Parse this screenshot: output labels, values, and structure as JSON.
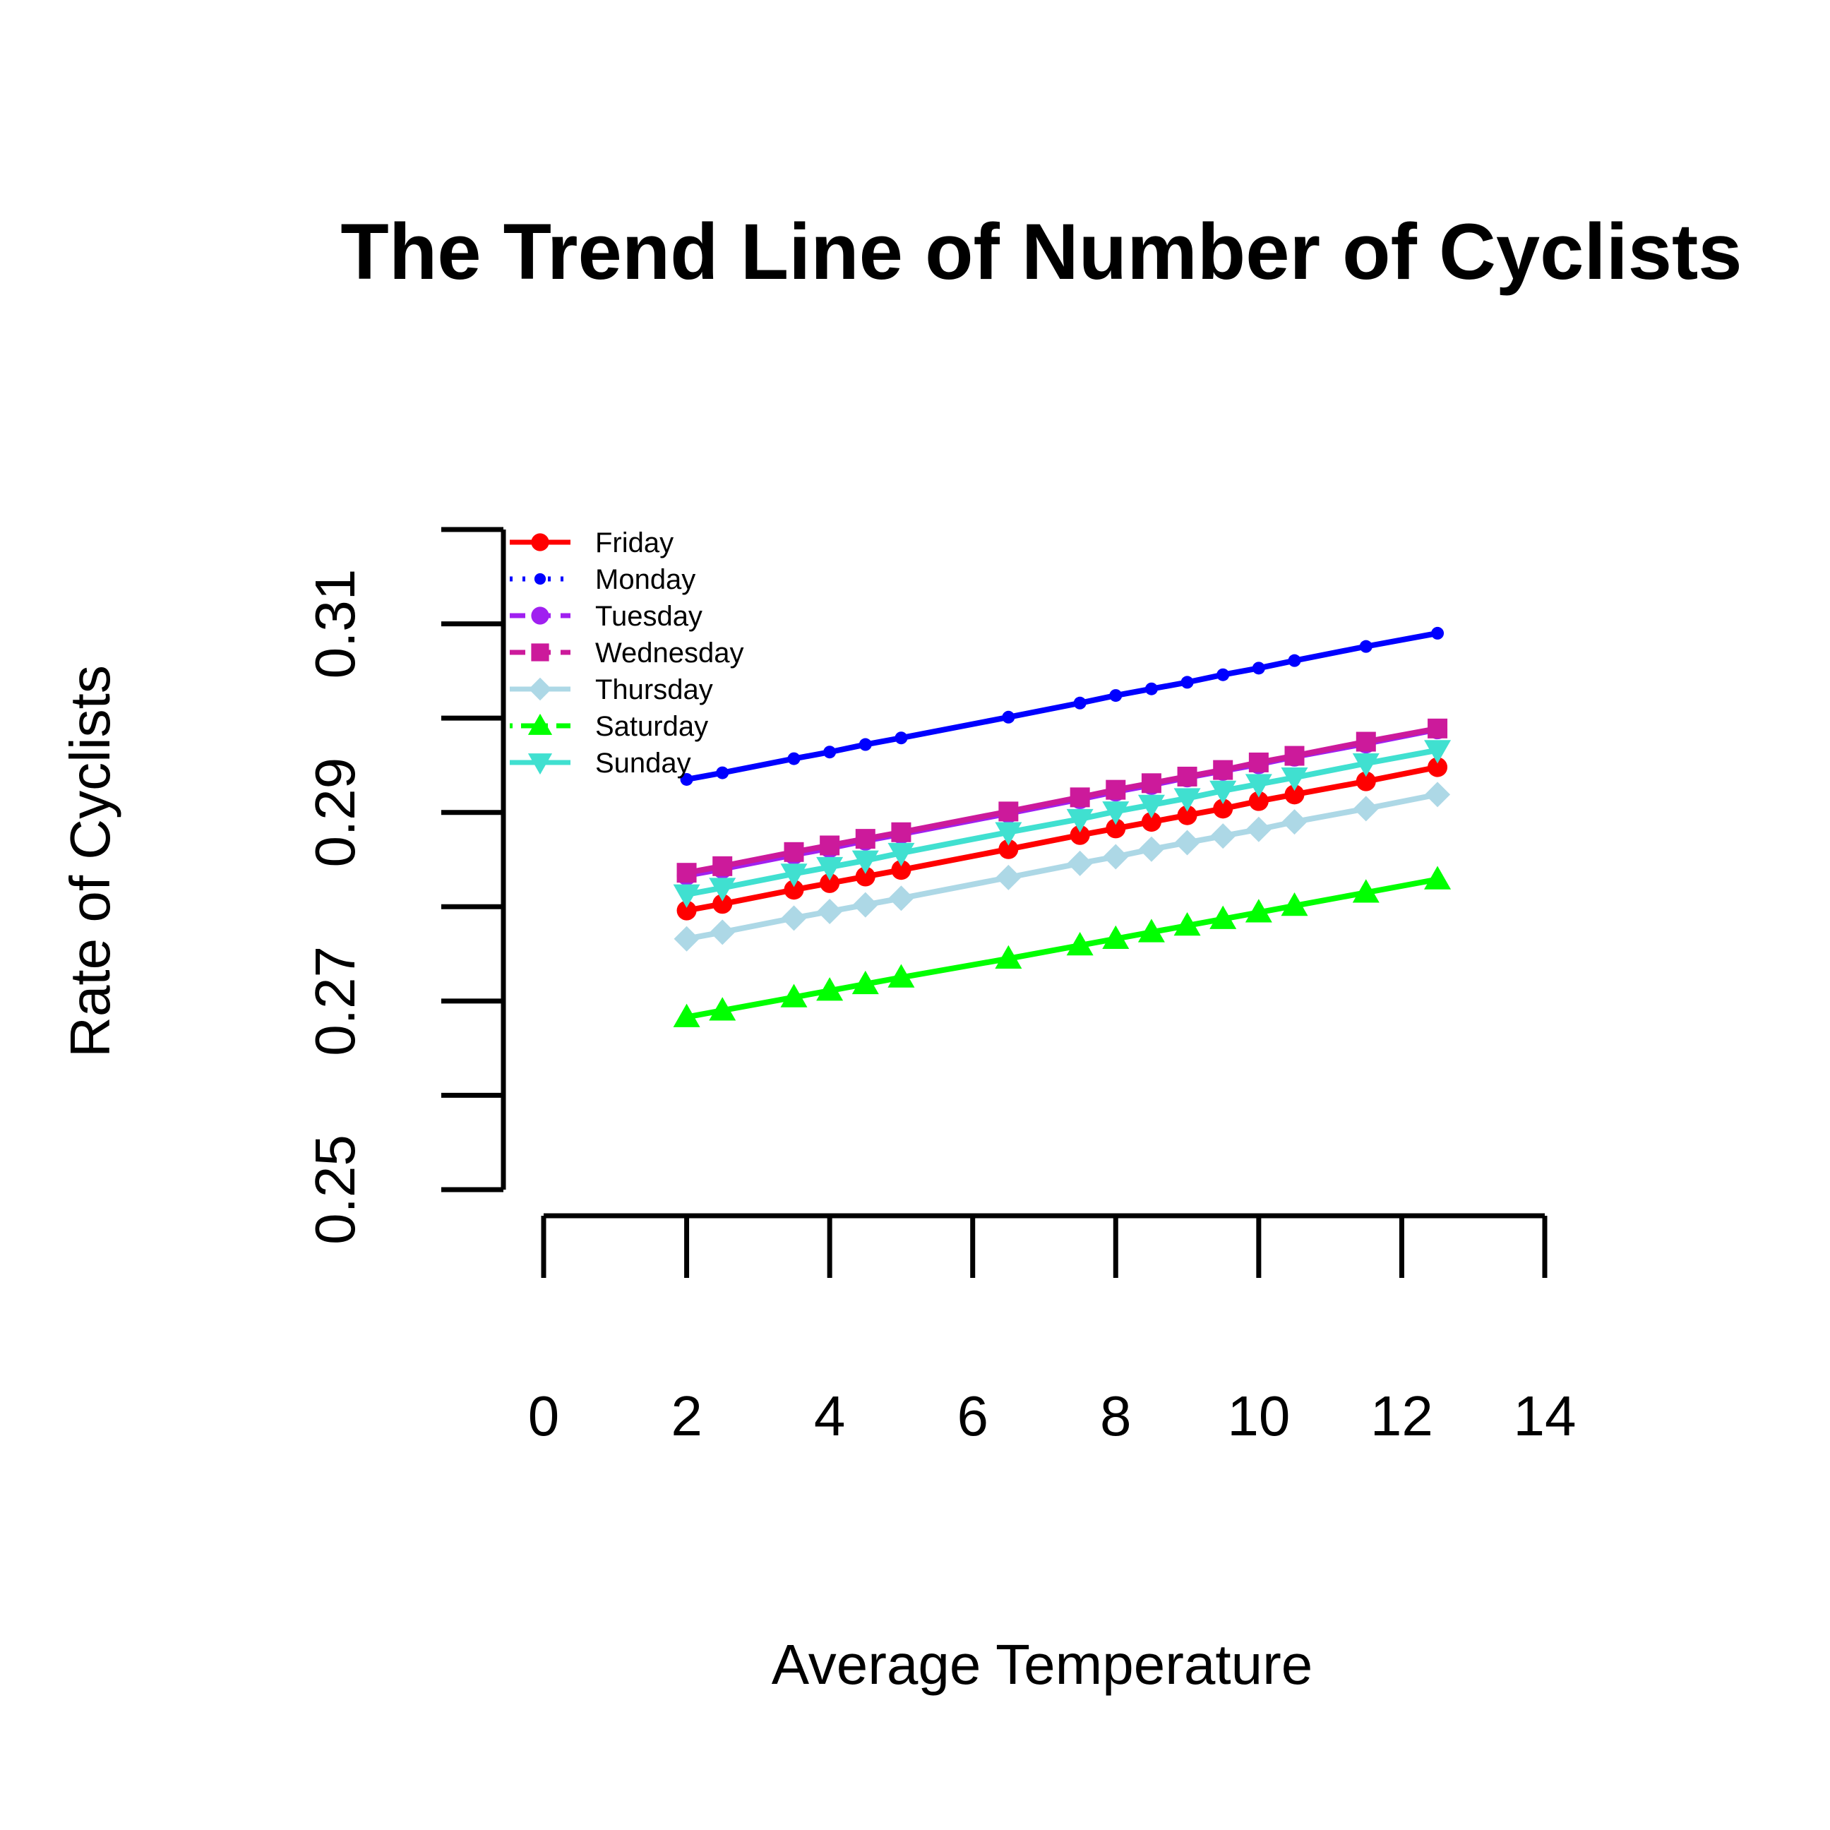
{
  "chart_data": {
    "type": "line",
    "title": "The Trend Line of Number of Cyclists",
    "xlabel": "Average Temperature",
    "ylabel": "Rate of Cyclists",
    "xlim": [
      0,
      14
    ],
    "ylim": [
      0.25,
      0.32
    ],
    "x_ticks": [
      0,
      2,
      4,
      6,
      8,
      10,
      12,
      14
    ],
    "x_tick_labels": [
      "0",
      "2",
      "4",
      "6",
      "8",
      "10",
      "12",
      "14"
    ],
    "y_ticks": [
      0.25,
      0.26,
      0.27,
      0.28,
      0.29,
      0.3,
      0.31,
      0.32
    ],
    "y_tick_labels": [
      "0.25",
      "",
      "0.27",
      "",
      "0.29",
      "",
      "0.31",
      ""
    ],
    "grid": false,
    "legend_position": "top-left",
    "x": [
      2.0,
      2.5,
      3.5,
      4.0,
      4.5,
      5.0,
      6.5,
      7.5,
      8.0,
      8.5,
      9.0,
      9.5,
      10.0,
      10.5,
      11.5,
      12.5
    ],
    "series": [
      {
        "name": "Friday",
        "color": "#ff0000",
        "marker": "circle",
        "dash": "solid",
        "values": [
          0.2796,
          0.2803,
          0.2818,
          0.2825,
          0.2832,
          0.2839,
          0.2861,
          0.2876,
          0.2883,
          0.289,
          0.2897,
          0.2904,
          0.2912,
          0.2919,
          0.2933,
          0.2948
        ]
      },
      {
        "name": "Monday",
        "color": "#0000ff",
        "marker": "small-circle",
        "dash": "dotted",
        "values": [
          0.2935,
          0.2942,
          0.2957,
          0.2964,
          0.2972,
          0.2979,
          0.3001,
          0.3016,
          0.3024,
          0.3031,
          0.3038,
          0.3046,
          0.3053,
          0.3061,
          0.3076,
          0.309
        ]
      },
      {
        "name": "Tuesday",
        "color": "#a020f0",
        "marker": "circle",
        "dash": "dashed",
        "values": [
          0.2833,
          0.284,
          0.2855,
          0.2862,
          0.287,
          0.2877,
          0.2899,
          0.2914,
          0.2922,
          0.2929,
          0.2937,
          0.2944,
          0.2951,
          0.2959,
          0.2973,
          0.2988
        ]
      },
      {
        "name": "Wednesday",
        "color": "#cc1a9b",
        "marker": "square",
        "dash": "dashed",
        "values": [
          0.2836,
          0.2843,
          0.2858,
          0.2865,
          0.2872,
          0.2879,
          0.2901,
          0.2916,
          0.2924,
          0.2931,
          0.2938,
          0.2945,
          0.2953,
          0.296,
          0.2975,
          0.2989
        ]
      },
      {
        "name": "Thursday",
        "color": "#add8e6",
        "marker": "diamond",
        "dash": "longdash",
        "values": [
          0.2766,
          0.2773,
          0.2788,
          0.2795,
          0.2802,
          0.2809,
          0.2831,
          0.2846,
          0.2853,
          0.2861,
          0.2868,
          0.2875,
          0.2882,
          0.289,
          0.2904,
          0.2919
        ]
      },
      {
        "name": "Saturday",
        "color": "#00ff00",
        "marker": "triangle",
        "dash": "dotdash",
        "values": [
          0.2683,
          0.269,
          0.2704,
          0.2711,
          0.2718,
          0.2725,
          0.2745,
          0.2759,
          0.2766,
          0.2773,
          0.278,
          0.2787,
          0.2794,
          0.2801,
          0.2815,
          0.2829
        ]
      },
      {
        "name": "Sunday",
        "color": "#40e0d0",
        "marker": "triangle-down",
        "dash": "solid",
        "values": [
          0.2813,
          0.282,
          0.2835,
          0.2842,
          0.2849,
          0.2857,
          0.2879,
          0.2893,
          0.2901,
          0.2908,
          0.2915,
          0.2923,
          0.293,
          0.2937,
          0.2952,
          0.2966
        ]
      }
    ]
  }
}
